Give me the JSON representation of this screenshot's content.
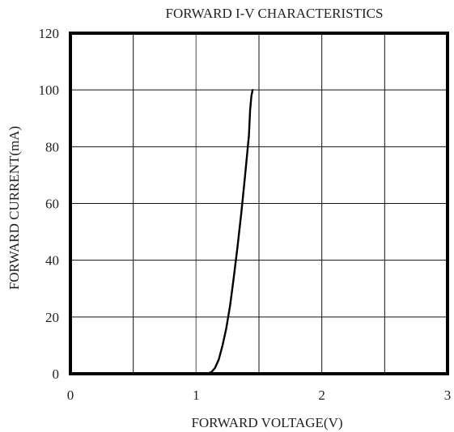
{
  "chart_data": {
    "type": "line",
    "title": "FORWARD I-V CHARACTERISTICS",
    "xlabel": "FORWARD VOLTAGE(V)",
    "ylabel": "FORWARD CURRENT(mA)",
    "xlim": [
      0,
      3
    ],
    "ylim": [
      0,
      120
    ],
    "x_ticks": [
      "0",
      "1",
      "2",
      "3"
    ],
    "y_ticks": [
      "0",
      "20",
      "40",
      "60",
      "80",
      "100",
      "120"
    ],
    "grid": true,
    "series": [
      {
        "x": [
          1.0,
          1.08,
          1.12,
          1.15,
          1.18,
          1.21,
          1.24,
          1.27,
          1.3,
          1.33,
          1.36,
          1.39,
          1.42,
          1.43,
          1.44,
          1.45
        ],
        "y": [
          0,
          0,
          0.5,
          2,
          5,
          10,
          16,
          24,
          34,
          45,
          57,
          70,
          84,
          93,
          98,
          100
        ]
      }
    ]
  }
}
